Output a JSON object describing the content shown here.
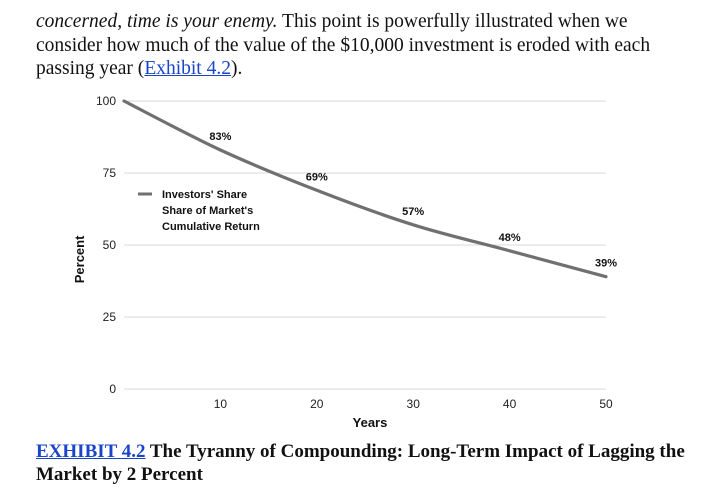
{
  "intro": {
    "italic_text": "concerned, time is your enemy.",
    "text_after_italic": " This point is powerfully illustrated when we consider how much of the value of the $10,000 investment is eroded with each passing year (",
    "link_text": "Exhibit 4.2",
    "text_end": ")."
  },
  "chart_data": {
    "type": "line",
    "x": [
      0,
      10,
      20,
      30,
      40,
      50
    ],
    "series": [
      {
        "name": "Investors' Share Share of Market's Cumulative Return",
        "values": [
          100,
          83,
          69,
          57,
          48,
          39
        ],
        "color": "#707070"
      }
    ],
    "legend_lines": [
      "Investors' Share",
      "Share of Market's",
      "Cumulative Return"
    ],
    "data_labels": [
      {
        "x": 10,
        "y": 83,
        "text": "83%"
      },
      {
        "x": 20,
        "y": 69,
        "text": "69%"
      },
      {
        "x": 30,
        "y": 57,
        "text": "57%"
      },
      {
        "x": 40,
        "y": 48,
        "text": "48%"
      },
      {
        "x": 50,
        "y": 39,
        "text": "39%"
      }
    ],
    "xlabel": "Years",
    "ylabel": "Percent",
    "xlim": [
      0,
      50
    ],
    "ylim": [
      0,
      100
    ],
    "xticks": [
      10,
      20,
      30,
      40,
      50
    ],
    "yticks": [
      0,
      25,
      50,
      75,
      100
    ],
    "grid": true,
    "legend_position": "left, mid-upper"
  },
  "caption": {
    "link_text": "EXHIBIT 4.2",
    "title": " The Tyranny of Compounding: Long-Term Impact of Lagging the Market by 2 Percent"
  }
}
